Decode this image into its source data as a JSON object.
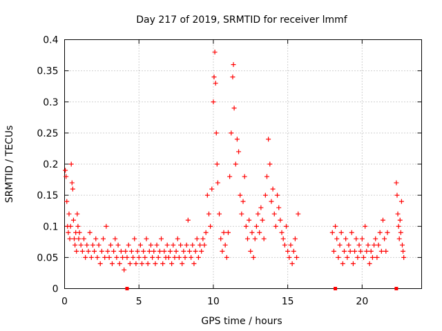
{
  "chart_data": {
    "type": "scatter",
    "title": "Day 217 of 2019, SRMTID for receiver lmmf",
    "xlabel": "GPS time / hours",
    "ylabel": "SRMTID / TECUs",
    "xlim": [
      0,
      24
    ],
    "ylim": [
      0,
      0.4
    ],
    "xticks": [
      0,
      5,
      10,
      15,
      20
    ],
    "yticks": [
      0,
      0.05,
      0.1,
      0.15,
      0.2,
      0.25,
      0.3,
      0.35,
      0.4
    ],
    "grid": true,
    "marker": "+",
    "marker_color": "#ff0000",
    "series": [
      {
        "name": "SRMTID",
        "color": "#ff0000",
        "points": [
          [
            0.05,
            0.19
          ],
          [
            0.1,
            0.18
          ],
          [
            0.15,
            0.14
          ],
          [
            0.2,
            0.1
          ],
          [
            0.25,
            0.09
          ],
          [
            0.3,
            0.12
          ],
          [
            0.35,
            0.08
          ],
          [
            0.4,
            0.1
          ],
          [
            0.45,
            0.2
          ],
          [
            0.5,
            0.17
          ],
          [
            0.55,
            0.16
          ],
          [
            0.6,
            0.11
          ],
          [
            0.65,
            0.08
          ],
          [
            0.7,
            0.07
          ],
          [
            0.75,
            0.09
          ],
          [
            0.8,
            0.06
          ],
          [
            0.85,
            0.12
          ],
          [
            0.9,
            0.1
          ],
          [
            0.95,
            0.08
          ],
          [
            1.0,
            0.09
          ],
          [
            1.1,
            0.07
          ],
          [
            1.2,
            0.06
          ],
          [
            1.3,
            0.08
          ],
          [
            1.4,
            0.05
          ],
          [
            1.5,
            0.07
          ],
          [
            1.6,
            0.06
          ],
          [
            1.7,
            0.09
          ],
          [
            1.8,
            0.05
          ],
          [
            1.9,
            0.07
          ],
          [
            2.0,
            0.06
          ],
          [
            2.1,
            0.08
          ],
          [
            2.2,
            0.05
          ],
          [
            2.3,
            0.07
          ],
          [
            2.4,
            0.04
          ],
          [
            2.5,
            0.06
          ],
          [
            2.6,
            0.08
          ],
          [
            2.7,
            0.05
          ],
          [
            2.8,
            0.1
          ],
          [
            2.9,
            0.06
          ],
          [
            3.0,
            0.05
          ],
          [
            3.1,
            0.07
          ],
          [
            3.2,
            0.04
          ],
          [
            3.3,
            0.06
          ],
          [
            3.4,
            0.08
          ],
          [
            3.5,
            0.05
          ],
          [
            3.6,
            0.07
          ],
          [
            3.7,
            0.04
          ],
          [
            3.8,
            0.06
          ],
          [
            3.9,
            0.05
          ],
          [
            4.0,
            0.03
          ],
          [
            4.1,
            0.06
          ],
          [
            4.2,
            0.05
          ],
          [
            4.3,
            0.07
          ],
          [
            4.4,
            0.04
          ],
          [
            4.5,
            0.06
          ],
          [
            4.6,
            0.05
          ],
          [
            4.7,
            0.08
          ],
          [
            4.8,
            0.04
          ],
          [
            4.9,
            0.06
          ],
          [
            5.0,
            0.05
          ],
          [
            5.1,
            0.07
          ],
          [
            5.2,
            0.04
          ],
          [
            5.3,
            0.06
          ],
          [
            5.4,
            0.05
          ],
          [
            5.5,
            0.08
          ],
          [
            5.6,
            0.04
          ],
          [
            5.7,
            0.06
          ],
          [
            5.8,
            0.07
          ],
          [
            5.9,
            0.05
          ],
          [
            6.0,
            0.06
          ],
          [
            6.1,
            0.04
          ],
          [
            6.2,
            0.07
          ],
          [
            6.3,
            0.05
          ],
          [
            6.4,
            0.06
          ],
          [
            6.5,
            0.08
          ],
          [
            6.6,
            0.04
          ],
          [
            6.7,
            0.06
          ],
          [
            6.8,
            0.05
          ],
          [
            6.9,
            0.07
          ],
          [
            7.0,
            0.05
          ],
          [
            7.1,
            0.06
          ],
          [
            7.2,
            0.04
          ],
          [
            7.3,
            0.07
          ],
          [
            7.4,
            0.05
          ],
          [
            7.5,
            0.06
          ],
          [
            7.6,
            0.08
          ],
          [
            7.7,
            0.05
          ],
          [
            7.8,
            0.07
          ],
          [
            7.9,
            0.04
          ],
          [
            8.0,
            0.06
          ],
          [
            8.1,
            0.05
          ],
          [
            8.2,
            0.07
          ],
          [
            8.3,
            0.11
          ],
          [
            8.4,
            0.06
          ],
          [
            8.5,
            0.05
          ],
          [
            8.6,
            0.07
          ],
          [
            8.7,
            0.04
          ],
          [
            8.8,
            0.06
          ],
          [
            8.9,
            0.08
          ],
          [
            9.0,
            0.05
          ],
          [
            9.1,
            0.07
          ],
          [
            9.2,
            0.06
          ],
          [
            9.3,
            0.08
          ],
          [
            9.4,
            0.07
          ],
          [
            9.5,
            0.09
          ],
          [
            9.6,
            0.15
          ],
          [
            9.7,
            0.12
          ],
          [
            9.8,
            0.1
          ],
          [
            9.9,
            0.16
          ],
          [
            10.0,
            0.3
          ],
          [
            10.05,
            0.34
          ],
          [
            10.1,
            0.38
          ],
          [
            10.15,
            0.33
          ],
          [
            10.2,
            0.25
          ],
          [
            10.25,
            0.2
          ],
          [
            10.3,
            0.17
          ],
          [
            10.4,
            0.12
          ],
          [
            10.5,
            0.08
          ],
          [
            10.6,
            0.06
          ],
          [
            10.7,
            0.09
          ],
          [
            10.8,
            0.07
          ],
          [
            10.9,
            0.05
          ],
          [
            11.0,
            0.09
          ],
          [
            11.1,
            0.18
          ],
          [
            11.2,
            0.25
          ],
          [
            11.3,
            0.34
          ],
          [
            11.35,
            0.36
          ],
          [
            11.4,
            0.29
          ],
          [
            11.5,
            0.2
          ],
          [
            11.6,
            0.24
          ],
          [
            11.7,
            0.22
          ],
          [
            11.8,
            0.15
          ],
          [
            11.9,
            0.12
          ],
          [
            12.0,
            0.14
          ],
          [
            12.1,
            0.18
          ],
          [
            12.2,
            0.1
          ],
          [
            12.3,
            0.08
          ],
          [
            12.4,
            0.11
          ],
          [
            12.5,
            0.06
          ],
          [
            12.6,
            0.09
          ],
          [
            12.7,
            0.05
          ],
          [
            12.8,
            0.08
          ],
          [
            12.9,
            0.1
          ],
          [
            13.0,
            0.12
          ],
          [
            13.1,
            0.09
          ],
          [
            13.2,
            0.13
          ],
          [
            13.3,
            0.11
          ],
          [
            13.4,
            0.08
          ],
          [
            13.5,
            0.15
          ],
          [
            13.6,
            0.18
          ],
          [
            13.7,
            0.24
          ],
          [
            13.8,
            0.2
          ],
          [
            13.9,
            0.14
          ],
          [
            14.0,
            0.16
          ],
          [
            14.1,
            0.12
          ],
          [
            14.2,
            0.1
          ],
          [
            14.3,
            0.15
          ],
          [
            14.4,
            0.13
          ],
          [
            14.5,
            0.11
          ],
          [
            14.6,
            0.09
          ],
          [
            14.7,
            0.08
          ],
          [
            14.8,
            0.07
          ],
          [
            14.9,
            0.1
          ],
          [
            15.0,
            0.06
          ],
          [
            15.1,
            0.05
          ],
          [
            15.2,
            0.07
          ],
          [
            15.3,
            0.04
          ],
          [
            15.4,
            0.06
          ],
          [
            15.5,
            0.08
          ],
          [
            15.6,
            0.05
          ],
          [
            15.7,
            0.12
          ],
          [
            18.0,
            0.09
          ],
          [
            18.1,
            0.06
          ],
          [
            18.2,
            0.1
          ],
          [
            18.3,
            0.08
          ],
          [
            18.4,
            0.05
          ],
          [
            18.5,
            0.07
          ],
          [
            18.6,
            0.09
          ],
          [
            18.7,
            0.04
          ],
          [
            18.8,
            0.06
          ],
          [
            18.9,
            0.08
          ],
          [
            19.0,
            0.05
          ],
          [
            19.1,
            0.07
          ],
          [
            19.2,
            0.06
          ],
          [
            19.3,
            0.09
          ],
          [
            19.4,
            0.04
          ],
          [
            19.5,
            0.06
          ],
          [
            19.6,
            0.08
          ],
          [
            19.7,
            0.05
          ],
          [
            19.8,
            0.07
          ],
          [
            19.9,
            0.06
          ],
          [
            20.0,
            0.08
          ],
          [
            20.1,
            0.05
          ],
          [
            20.2,
            0.1
          ],
          [
            20.3,
            0.06
          ],
          [
            20.4,
            0.07
          ],
          [
            20.5,
            0.04
          ],
          [
            20.6,
            0.06
          ],
          [
            20.7,
            0.05
          ],
          [
            20.8,
            0.07
          ],
          [
            20.9,
            0.08
          ],
          [
            21.0,
            0.05
          ],
          [
            21.1,
            0.07
          ],
          [
            21.2,
            0.09
          ],
          [
            21.3,
            0.06
          ],
          [
            21.4,
            0.11
          ],
          [
            21.5,
            0.08
          ],
          [
            21.6,
            0.06
          ],
          [
            21.7,
            0.09
          ],
          [
            22.3,
            0.17
          ],
          [
            22.35,
            0.15
          ],
          [
            22.4,
            0.12
          ],
          [
            22.45,
            0.1
          ],
          [
            22.5,
            0.08
          ],
          [
            22.55,
            0.11
          ],
          [
            22.6,
            0.09
          ],
          [
            22.65,
            0.14
          ],
          [
            22.7,
            0.07
          ],
          [
            22.75,
            0.06
          ],
          [
            22.8,
            0.05
          ]
        ]
      }
    ],
    "zero_markers_x": [
      4.2,
      18.2,
      22.3
    ]
  }
}
